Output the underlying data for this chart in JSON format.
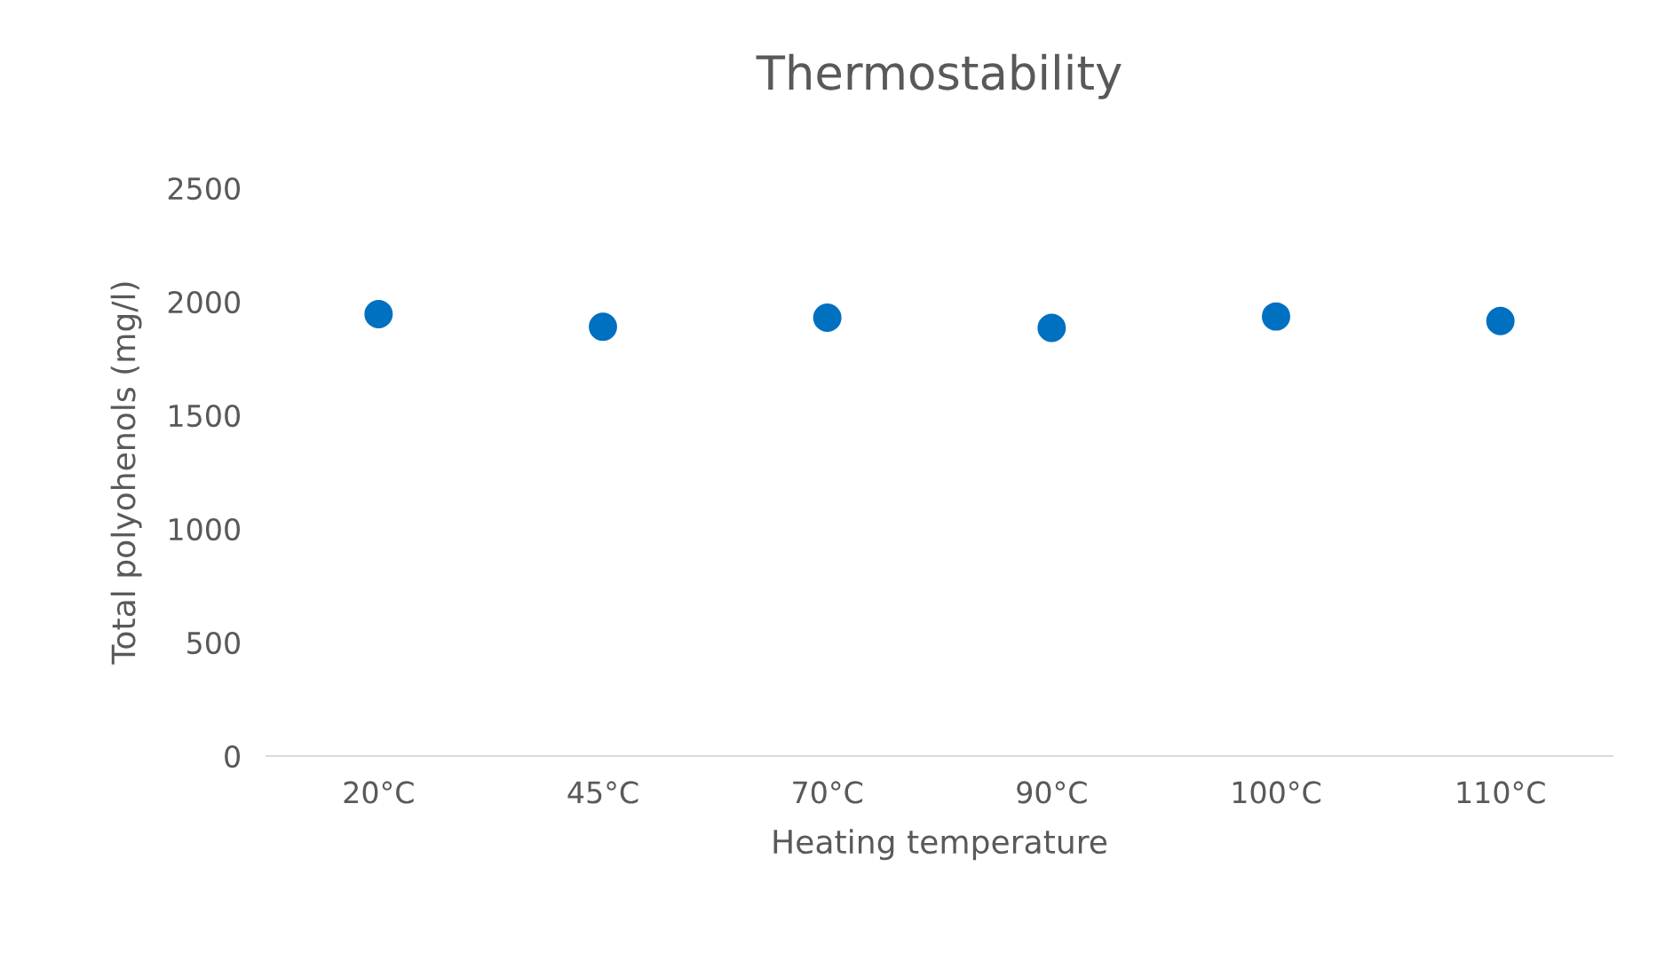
{
  "chart_data": {
    "type": "scatter",
    "title": "Thermostability",
    "xlabel": "Heating temperature",
    "ylabel": "Total polyohenols (mg/l)",
    "categories": [
      "20°C",
      "45°C",
      "70°C",
      "90°C",
      "100°C",
      "110°C"
    ],
    "series": [
      {
        "color": "#0070c0",
        "values": [
          1945,
          1890,
          1930,
          1885,
          1935,
          1915
        ]
      }
    ],
    "ylim": [
      0,
      2500
    ],
    "yticks": [
      0,
      500,
      1000,
      1500,
      2000,
      2500
    ],
    "grid": false,
    "legend": false,
    "marker": "circle"
  }
}
